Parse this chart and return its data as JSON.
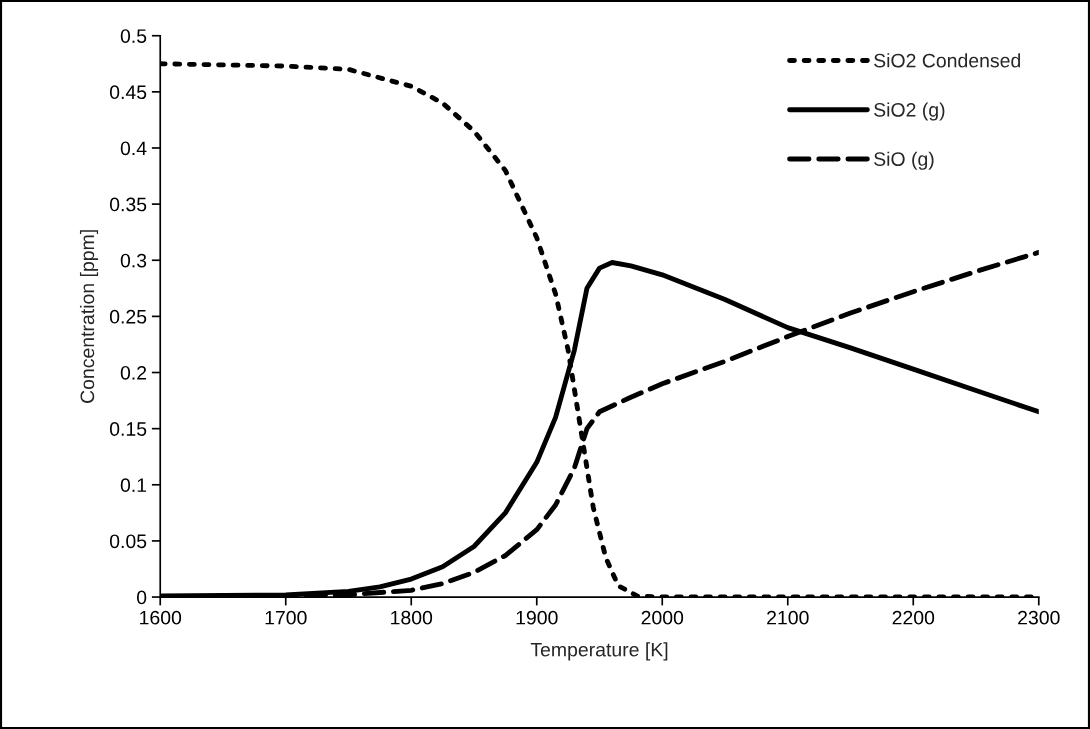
{
  "chart_data": {
    "type": "line",
    "xlabel": "Temperature [K]",
    "ylabel": "Concentration [ppm]",
    "xlim": [
      1600,
      2300
    ],
    "xticks": [
      1600,
      1700,
      1800,
      1900,
      2000,
      2100,
      2200,
      2300
    ],
    "ylim": [
      0,
      0.5
    ],
    "yticks": [
      0,
      0.05,
      0.1,
      0.15,
      0.2,
      0.25,
      0.3,
      0.35,
      0.4,
      0.45,
      0.5
    ],
    "grid": false,
    "legend": "top right",
    "marker": "none",
    "series": [
      {
        "name": "SiO2 Condensed",
        "color": "#000000",
        "line_style": "dotted",
        "x": [
          1600,
          1700,
          1750,
          1800,
          1825,
          1850,
          1875,
          1900,
          1915,
          1925,
          1935,
          1945,
          1955,
          1965,
          1980,
          2000,
          2300
        ],
        "values": [
          0.475,
          0.473,
          0.47,
          0.455,
          0.44,
          0.415,
          0.38,
          0.32,
          0.27,
          0.22,
          0.15,
          0.08,
          0.035,
          0.01,
          0.001,
          0,
          0
        ]
      },
      {
        "name": "SiO2 (g)",
        "color": "#000000",
        "line_style": "solid",
        "x": [
          1600,
          1700,
          1750,
          1775,
          1800,
          1825,
          1850,
          1875,
          1900,
          1915,
          1930,
          1940,
          1950,
          1960,
          1975,
          2000,
          2050,
          2100,
          2150,
          2200,
          2250,
          2300
        ],
        "values": [
          0.001,
          0.002,
          0.005,
          0.009,
          0.016,
          0.027,
          0.045,
          0.075,
          0.12,
          0.16,
          0.22,
          0.275,
          0.293,
          0.298,
          0.295,
          0.287,
          0.265,
          0.24,
          0.222,
          0.203,
          0.184,
          0.165
        ]
      },
      {
        "name": "SiO (g)",
        "color": "#000000",
        "line_style": "dashed",
        "x": [
          1600,
          1750,
          1800,
          1825,
          1850,
          1875,
          1900,
          1915,
          1930,
          1940,
          1950,
          1975,
          2000,
          2050,
          2100,
          2150,
          2200,
          2250,
          2300
        ],
        "values": [
          0,
          0.002,
          0.006,
          0.012,
          0.022,
          0.037,
          0.06,
          0.082,
          0.115,
          0.15,
          0.165,
          0.178,
          0.19,
          0.21,
          0.232,
          0.253,
          0.272,
          0.29,
          0.307
        ]
      }
    ]
  }
}
